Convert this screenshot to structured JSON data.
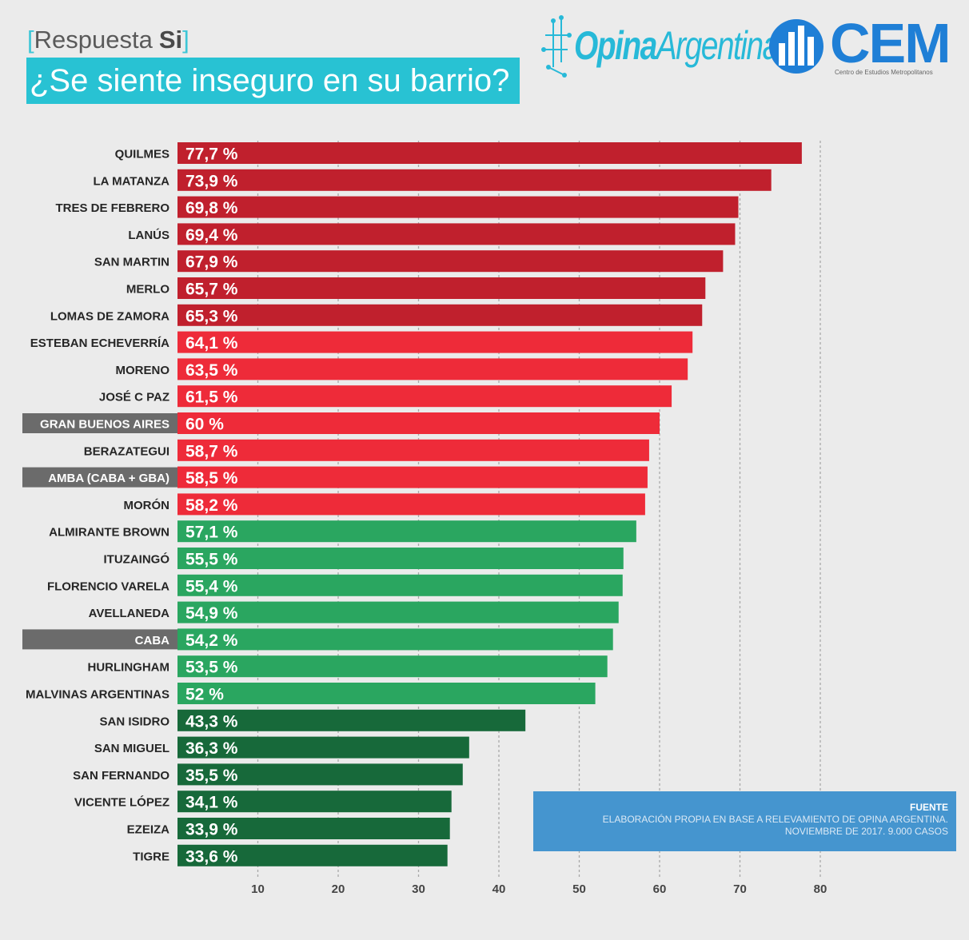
{
  "header": {
    "subtitle_left": "[",
    "subtitle_word": "Respuesta",
    "subtitle_bold": "Si",
    "subtitle_right": "]",
    "title": "¿Se siente inseguro en su barrio?"
  },
  "logos": {
    "opina_bold": "Opina",
    "opina_light": "Argentina",
    "cem_name": "CEM",
    "cem_subtitle": "Centro de Estudios Metropolitanos"
  },
  "source": {
    "title": "FUENTE",
    "line1": "ELABORACIÓN PROPIA EN BASE A RELEVAMIENTO DE OPINA ARGENTINA.",
    "line2": "NOVIEMBRE DE 2017. 9.000 CASOS"
  },
  "colors": {
    "dark_red": "#c0202d",
    "red": "#ee2b39",
    "green": "#2aa660",
    "dark_green": "#17693a",
    "highlight_label_bg": "#6b6b6b"
  },
  "chart_data": {
    "type": "bar",
    "orientation": "horizontal",
    "xlim": [
      0,
      80
    ],
    "xticks": [
      "10",
      "20",
      "30",
      "40",
      "50",
      "60",
      "70",
      "80"
    ],
    "grid": true,
    "categories": [
      "QUILMES",
      "LA MATANZA",
      "TRES DE FEBRERO",
      "LANÚS",
      "SAN MARTIN",
      "MERLO",
      "LOMAS DE ZAMORA",
      "ESTEBAN ECHEVERRÍA",
      "MORENO",
      "JOSÉ C PAZ",
      "GRAN BUENOS AIRES",
      "BERAZATEGUI",
      "AMBA (CABA + GBA)",
      "MORÓN",
      "ALMIRANTE BROWN",
      "ITUZAINGÓ",
      "FLORENCIO VARELA",
      "AVELLANEDA",
      "CABA",
      "HURLINGHAM",
      "MALVINAS ARGENTINAS",
      "SAN ISIDRO",
      "SAN MIGUEL",
      "SAN FERNANDO",
      "VICENTE LÓPEZ",
      "EZEIZA",
      "TIGRE"
    ],
    "values": [
      77.7,
      73.9,
      69.8,
      69.4,
      67.9,
      65.7,
      65.3,
      64.1,
      63.5,
      61.5,
      60,
      58.7,
      58.5,
      58.2,
      57.1,
      55.5,
      55.4,
      54.9,
      54.2,
      53.5,
      52,
      43.3,
      36.3,
      35.5,
      34.1,
      33.9,
      33.6
    ],
    "value_labels": [
      "77,7 %",
      "73,9 %",
      "69,8 %",
      "69,4 %",
      "67,9 %",
      "65,7 %",
      "65,3 %",
      "64,1 %",
      "63,5 %",
      "61,5 %",
      "60 %",
      "58,7 %",
      "58,5 %",
      "58,2 %",
      "57,1 %",
      "55,5 %",
      "55,4 %",
      "54,9 %",
      "54,2 %",
      "53,5 %",
      "52 %",
      "43,3 %",
      "36,3 %",
      "35,5 %",
      "34,1 %",
      "33,9 %",
      "33,6 %"
    ],
    "bar_colors": [
      "#c0202d",
      "#c0202d",
      "#c0202d",
      "#c0202d",
      "#c0202d",
      "#c0202d",
      "#c0202d",
      "#ee2b39",
      "#ee2b39",
      "#ee2b39",
      "#ee2b39",
      "#ee2b39",
      "#ee2b39",
      "#ee2b39",
      "#2aa660",
      "#2aa660",
      "#2aa660",
      "#2aa660",
      "#2aa660",
      "#2aa660",
      "#2aa660",
      "#17693a",
      "#17693a",
      "#17693a",
      "#17693a",
      "#17693a",
      "#17693a"
    ],
    "highlighted_categories": [
      "GRAN BUENOS AIRES",
      "AMBA (CABA + GBA)",
      "CABA"
    ]
  }
}
